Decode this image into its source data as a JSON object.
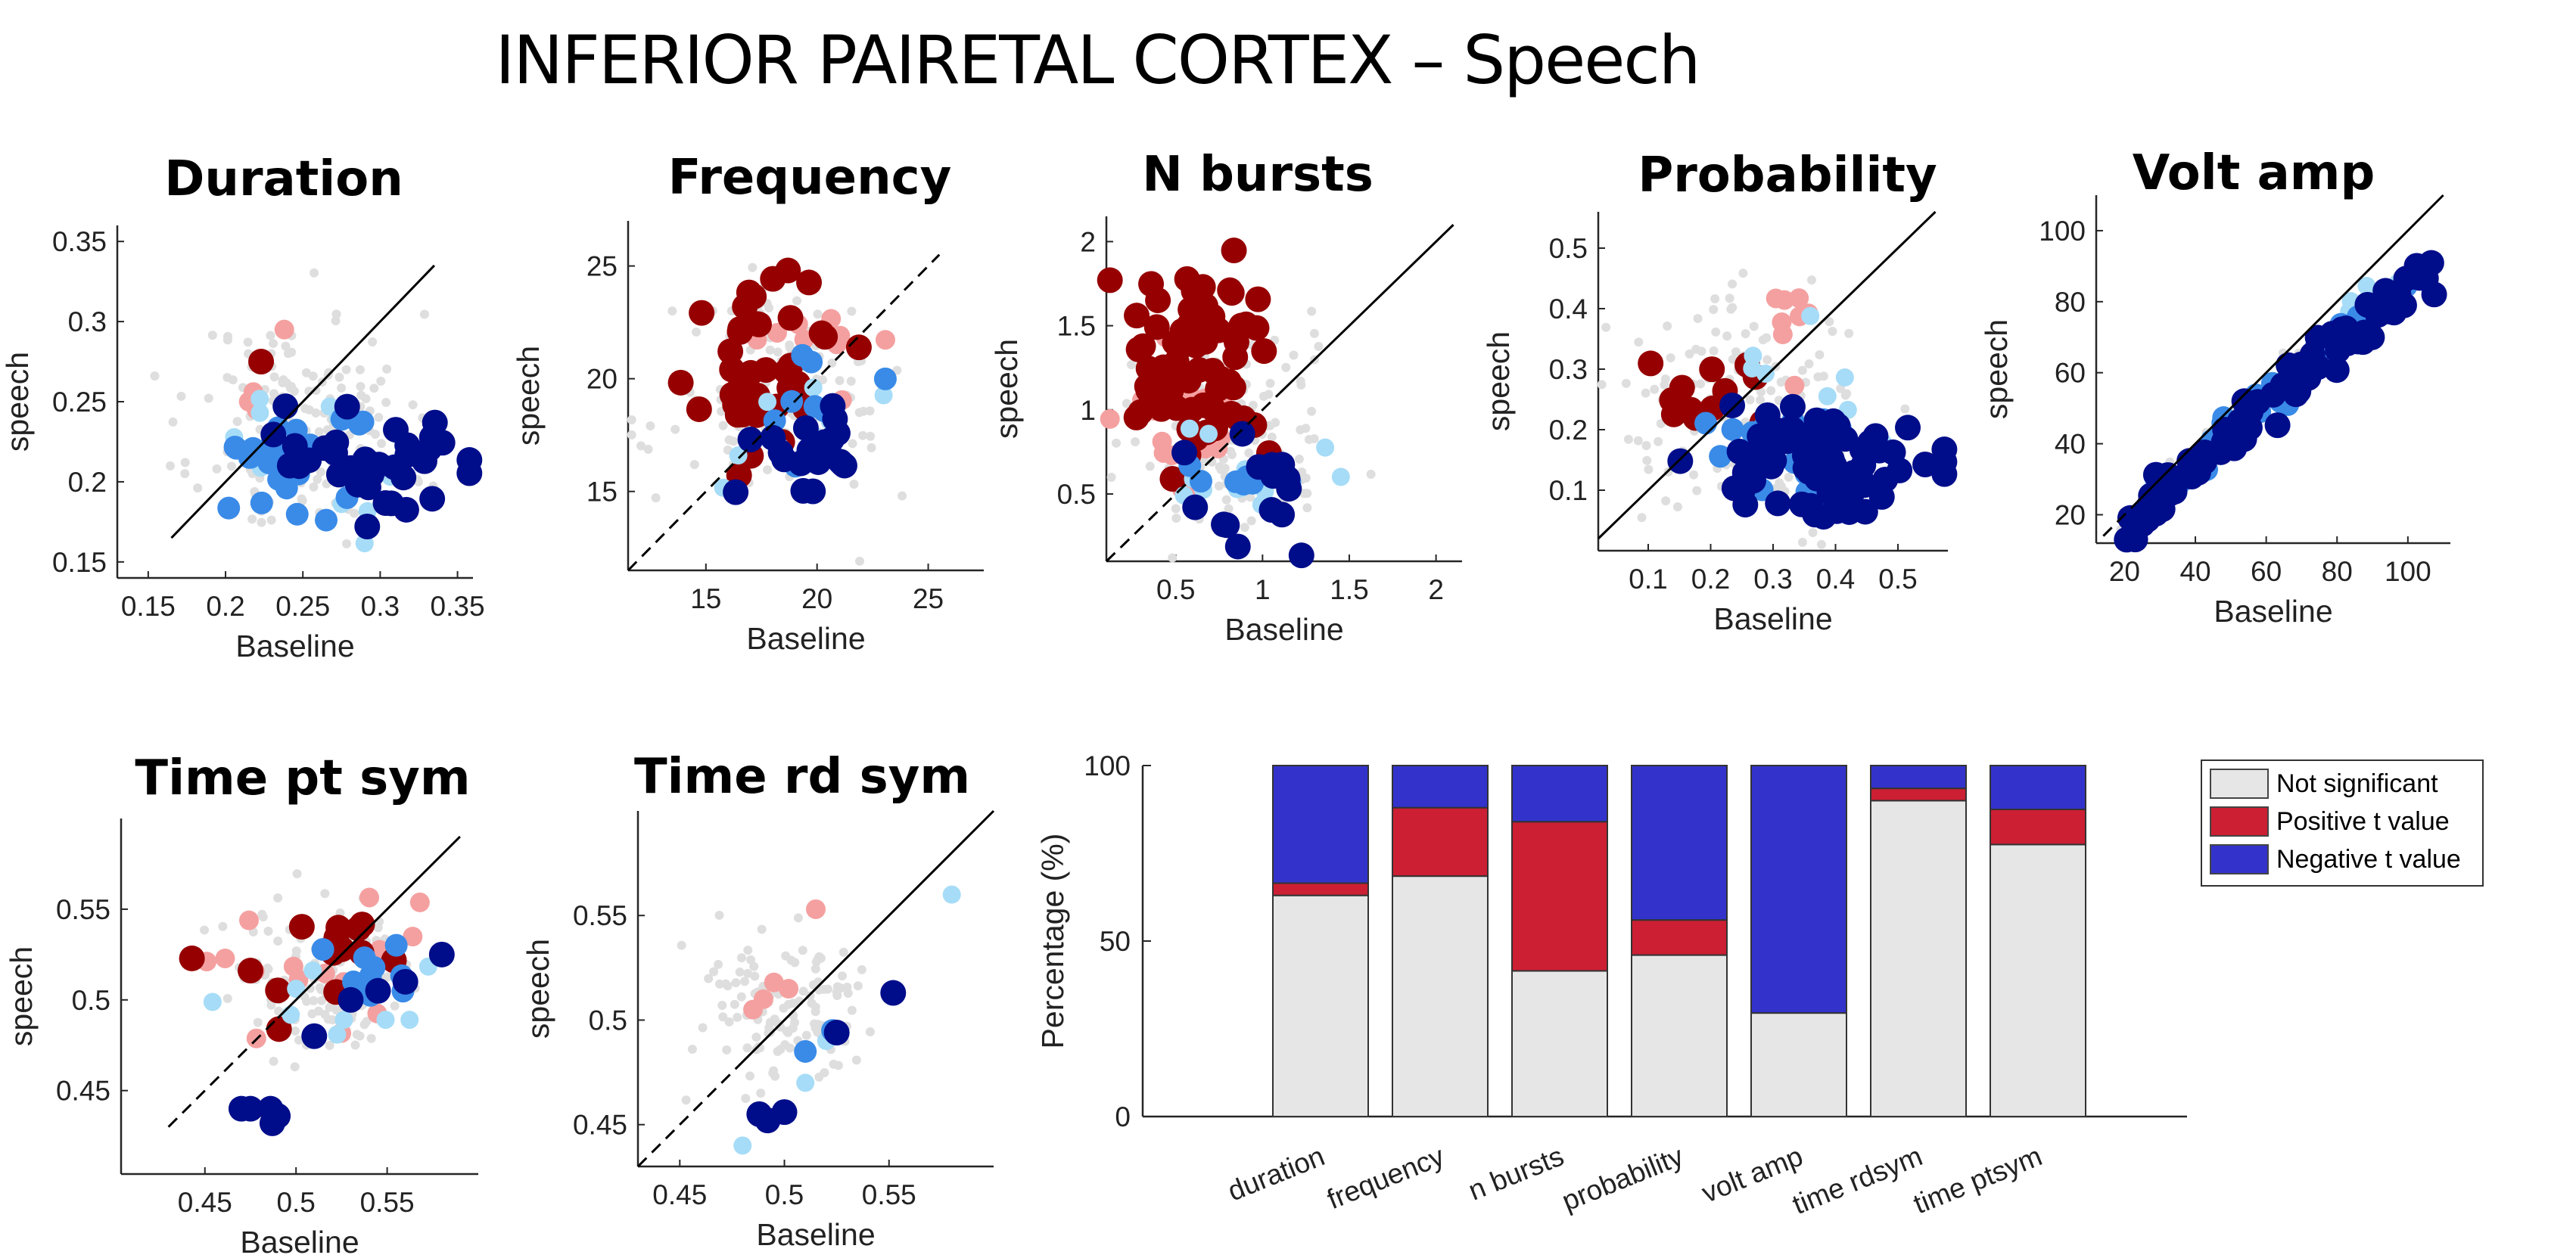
{
  "page_title": "INFERIOR PAIRETAL CORTEX – Speech",
  "colors": {
    "not_sig_dot": "#dedede",
    "pos_strong": "#960000",
    "pos_light": "#f5a0a0",
    "neg_strong": "#000d8a",
    "neg_mid": "#3a8be8",
    "neg_light": "#a6dcf7",
    "bar_not_sig": "#e6e6e6",
    "bar_pos": "#cc1f33",
    "bar_neg": "#3333cc"
  },
  "chart_data": [
    {
      "id": "duration",
      "type": "scatter",
      "title": "Duration",
      "xlabel": "Baseline",
      "ylabel": "speech",
      "xlim": [
        0.13,
        0.36
      ],
      "ylim": [
        0.14,
        0.36
      ],
      "xticks": [
        0.15,
        0.2,
        0.25,
        0.3,
        0.35
      ],
      "yticks": [
        0.15,
        0.2,
        0.25,
        0.3,
        0.35
      ],
      "xtick_labels": [
        "0.15",
        "0.2",
        "0.25",
        "0.3",
        "0.35"
      ],
      "ytick_labels": [
        "0.15",
        "0.2",
        "0.25",
        "0.3",
        "0.35"
      ],
      "diag_style": "solid",
      "diag_range": [
        0.165,
        0.335
      ],
      "clusters": [
        {
          "cat": "ns",
          "n": 170,
          "cx": 0.25,
          "cy": 0.235,
          "sx": 0.034,
          "sy": 0.035,
          "seed": 11
        },
        {
          "cat": "pos_light",
          "points": [
            [
              0.215,
              0.25
            ],
            [
              0.22,
              0.245
            ],
            [
              0.225,
              0.275
            ],
            [
              0.238,
              0.295
            ],
            [
              0.218,
              0.256
            ]
          ]
        },
        {
          "cat": "pos_strong",
          "points": [
            [
              0.223,
              0.275
            ]
          ]
        },
        {
          "cat": "neg_light",
          "n": 10,
          "cx": 0.27,
          "cy": 0.225,
          "sx": 0.04,
          "sy": 0.03,
          "seed": 3
        },
        {
          "cat": "neg_mid",
          "n": 30,
          "cx": 0.25,
          "cy": 0.215,
          "sx": 0.022,
          "sy": 0.017,
          "seed": 5
        },
        {
          "cat": "neg_strong",
          "n": 35,
          "cx": 0.29,
          "cy": 0.21,
          "sx": 0.03,
          "sy": 0.02,
          "seed": 7
        }
      ]
    },
    {
      "id": "frequency",
      "type": "scatter",
      "title": "Frequency",
      "xlabel": "Baseline",
      "ylabel": "speech",
      "xlim": [
        11.5,
        27.5
      ],
      "ylim": [
        11.5,
        27
      ],
      "xticks": [
        15,
        20,
        25
      ],
      "yticks": [
        15,
        20,
        25
      ],
      "xtick_labels": [
        "15",
        "20",
        "25"
      ],
      "ytick_labels": [
        "15",
        "20",
        "25"
      ],
      "diag_style": "dashed",
      "diag_range": [
        11.5,
        25.5
      ],
      "clusters": [
        {
          "cat": "ns",
          "n": 150,
          "cx": 18.5,
          "cy": 19,
          "sx": 2.4,
          "sy": 2.3,
          "seed": 21
        },
        {
          "cat": "pos_light",
          "n": 12,
          "cx": 19.5,
          "cy": 21.5,
          "sx": 1.6,
          "sy": 1.3,
          "seed": 22
        },
        {
          "cat": "pos_strong",
          "n": 40,
          "cx": 18.2,
          "cy": 20.3,
          "sx": 1.6,
          "sy": 1.8,
          "seed": 23
        },
        {
          "cat": "neg_light",
          "n": 8,
          "cx": 19,
          "cy": 17.5,
          "sx": 2,
          "sy": 1.5,
          "seed": 24
        },
        {
          "cat": "neg_mid",
          "n": 8,
          "cx": 20.5,
          "cy": 18.5,
          "sx": 1.5,
          "sy": 1.2,
          "seed": 25
        },
        {
          "cat": "neg_strong",
          "n": 20,
          "cx": 20,
          "cy": 17.6,
          "sx": 1.5,
          "sy": 1.3,
          "seed": 26
        }
      ]
    },
    {
      "id": "nbursts",
      "type": "scatter",
      "title": "N bursts",
      "xlabel": "Baseline",
      "ylabel": "speech",
      "xlim": [
        0.1,
        2.15
      ],
      "ylim": [
        0.1,
        2.15
      ],
      "xticks": [
        0.5,
        1,
        1.5,
        2
      ],
      "yticks": [
        0.5,
        1,
        1.5,
        2
      ],
      "xtick_labels": [
        "0.5",
        "1",
        "1.5",
        "2"
      ],
      "ytick_labels": [
        "0.5",
        "1",
        "1.5",
        "2"
      ],
      "diag_style": "split",
      "diag_range": [
        0.1,
        2.1
      ],
      "diag_split": 1.1,
      "clusters": [
        {
          "cat": "ns",
          "n": 150,
          "cx": 0.8,
          "cy": 0.85,
          "sx": 0.3,
          "sy": 0.3,
          "seed": 31
        },
        {
          "cat": "pos_light",
          "n": 25,
          "cx": 0.6,
          "cy": 0.95,
          "sx": 0.2,
          "sy": 0.25,
          "seed": 32
        },
        {
          "cat": "pos_strong",
          "n": 70,
          "cx": 0.62,
          "cy": 1.22,
          "sx": 0.18,
          "sy": 0.28,
          "seed": 33
        },
        {
          "cat": "neg_light",
          "n": 12,
          "cx": 0.85,
          "cy": 0.6,
          "sx": 0.25,
          "sy": 0.15,
          "seed": 34
        },
        {
          "cat": "neg_mid",
          "n": 8,
          "cx": 0.9,
          "cy": 0.6,
          "sx": 0.2,
          "sy": 0.1,
          "seed": 35
        },
        {
          "cat": "neg_strong",
          "n": 15,
          "cx": 0.95,
          "cy": 0.5,
          "sx": 0.25,
          "sy": 0.2,
          "seed": 36
        }
      ]
    },
    {
      "id": "probability",
      "type": "scatter",
      "title": "Probability",
      "xlabel": "Baseline",
      "ylabel": "speech",
      "xlim": [
        0.02,
        0.58
      ],
      "ylim": [
        0.0,
        0.56
      ],
      "xticks": [
        0.1,
        0.2,
        0.3,
        0.4,
        0.5
      ],
      "yticks": [
        0.1,
        0.2,
        0.3,
        0.4,
        0.5
      ],
      "xtick_labels": [
        "0.1",
        "0.2",
        "0.3",
        "0.4",
        "0.5"
      ],
      "ytick_labels": [
        "0.1",
        "0.2",
        "0.3",
        "0.4",
        "0.5"
      ],
      "diag_style": "solid",
      "diag_range": [
        0.02,
        0.56
      ],
      "clusters": [
        {
          "cat": "ns",
          "n": 150,
          "cx": 0.25,
          "cy": 0.24,
          "sx": 0.1,
          "sy": 0.09,
          "seed": 41
        },
        {
          "cat": "pos_light",
          "n": 8,
          "cx": 0.3,
          "cy": 0.38,
          "sx": 0.03,
          "sy": 0.04,
          "seed": 42
        },
        {
          "cat": "pos_strong",
          "n": 12,
          "cx": 0.18,
          "cy": 0.27,
          "sx": 0.06,
          "sy": 0.06,
          "seed": 43
        },
        {
          "cat": "neg_light",
          "n": 12,
          "cx": 0.35,
          "cy": 0.22,
          "sx": 0.1,
          "sy": 0.07,
          "seed": 44
        },
        {
          "cat": "neg_mid",
          "n": 15,
          "cx": 0.3,
          "cy": 0.18,
          "sx": 0.08,
          "sy": 0.05,
          "seed": 45
        },
        {
          "cat": "neg_strong",
          "n": 80,
          "cx": 0.38,
          "cy": 0.15,
          "sx": 0.09,
          "sy": 0.045,
          "seed": 46
        }
      ]
    },
    {
      "id": "voltamp",
      "type": "scatter",
      "title": "Volt amp",
      "xlabel": "Baseline",
      "ylabel": "speech",
      "xlim": [
        12,
        112
      ],
      "ylim": [
        12,
        110
      ],
      "xticks": [
        20,
        40,
        60,
        80,
        100
      ],
      "yticks": [
        20,
        40,
        60,
        80,
        100
      ],
      "xtick_labels": [
        "20",
        "40",
        "60",
        "80",
        "100"
      ],
      "ytick_labels": [
        "20",
        "40",
        "60",
        "80",
        "100"
      ],
      "diag_style": "split",
      "diag_range": [
        14,
        110
      ],
      "diag_split": 22,
      "clusters": [
        {
          "cat": "ns",
          "n": 40,
          "line": true,
          "x0": 18,
          "x1": 105,
          "slope": 0.86,
          "icept": 1,
          "jitter": 3,
          "seed": 51
        },
        {
          "cat": "neg_light",
          "n": 10,
          "line": true,
          "x0": 18,
          "x1": 105,
          "slope": 0.9,
          "icept": 0,
          "jitter": 3,
          "seed": 52
        },
        {
          "cat": "neg_mid",
          "n": 30,
          "line": true,
          "x0": 30,
          "x1": 100,
          "slope": 0.88,
          "icept": 0,
          "jitter": 3,
          "seed": 53
        },
        {
          "cat": "neg_strong",
          "n": 90,
          "line": true,
          "x0": 20,
          "x1": 108,
          "slope": 0.84,
          "icept": 0,
          "jitter": 3.5,
          "seed": 54
        }
      ]
    },
    {
      "id": "timeptsym",
      "type": "scatter",
      "title": "Time pt sym",
      "xlabel": "Baseline",
      "ylabel": "speech",
      "xlim": [
        0.404,
        0.6
      ],
      "ylim": [
        0.404,
        0.6
      ],
      "xticks": [
        0.45,
        0.5,
        0.55
      ],
      "yticks": [
        0.45,
        0.5,
        0.55
      ],
      "xtick_labels": [
        "0.45",
        "0.5",
        "0.55"
      ],
      "ytick_labels": [
        "0.45",
        "0.5",
        "0.55"
      ],
      "diag_style": "split",
      "diag_range": [
        0.43,
        0.59
      ],
      "diag_split": 0.49,
      "clusters": [
        {
          "cat": "ns",
          "n": 140,
          "cx": 0.515,
          "cy": 0.515,
          "sx": 0.025,
          "sy": 0.022,
          "seed": 61
        },
        {
          "cat": "pos_light",
          "n": 15,
          "cx": 0.5,
          "cy": 0.525,
          "sx": 0.03,
          "sy": 0.02,
          "seed": 62
        },
        {
          "cat": "pos_strong",
          "n": 15,
          "cx": 0.495,
          "cy": 0.52,
          "sx": 0.025,
          "sy": 0.02,
          "seed": 63
        },
        {
          "cat": "neg_light",
          "n": 10,
          "cx": 0.53,
          "cy": 0.5,
          "sx": 0.03,
          "sy": 0.02,
          "seed": 64
        },
        {
          "cat": "neg_mid",
          "n": 10,
          "cx": 0.54,
          "cy": 0.51,
          "sx": 0.02,
          "sy": 0.015,
          "seed": 65
        },
        {
          "cat": "neg_strong",
          "points": [
            [
              0.47,
              0.44
            ],
            [
              0.475,
              0.44
            ],
            [
              0.487,
              0.432
            ],
            [
              0.49,
              0.436
            ],
            [
              0.486,
              0.44
            ],
            [
              0.51,
              0.48
            ],
            [
              0.53,
              0.5
            ],
            [
              0.545,
              0.505
            ],
            [
              0.58,
              0.525
            ],
            [
              0.56,
              0.51
            ]
          ]
        }
      ]
    },
    {
      "id": "timerdsym",
      "type": "scatter",
      "title": "Time rd sym",
      "xlabel": "Baseline",
      "ylabel": "speech",
      "xlim": [
        0.43,
        0.6
      ],
      "ylim": [
        0.43,
        0.6
      ],
      "xticks": [
        0.45,
        0.5,
        0.55
      ],
      "yticks": [
        0.45,
        0.5,
        0.55
      ],
      "xtick_labels": [
        "0.45",
        "0.5",
        "0.55"
      ],
      "ytick_labels": [
        "0.45",
        "0.5",
        "0.55"
      ],
      "diag_style": "split",
      "diag_range": [
        0.43,
        0.6
      ],
      "diag_split": 0.478,
      "clusters": [
        {
          "cat": "ns",
          "n": 130,
          "cx": 0.5,
          "cy": 0.503,
          "sx": 0.022,
          "sy": 0.02,
          "seed": 71
        },
        {
          "cat": "pos_light",
          "points": [
            [
              0.49,
              0.51
            ],
            [
              0.502,
              0.515
            ],
            [
              0.515,
              0.553
            ],
            [
              0.485,
              0.505
            ],
            [
              0.495,
              0.518
            ]
          ]
        },
        {
          "cat": "neg_light",
          "points": [
            [
              0.48,
              0.44
            ],
            [
              0.52,
              0.49
            ],
            [
              0.58,
              0.56
            ],
            [
              0.51,
              0.47
            ]
          ]
        },
        {
          "cat": "neg_mid",
          "points": [
            [
              0.51,
              0.485
            ],
            [
              0.523,
              0.495
            ]
          ]
        },
        {
          "cat": "neg_strong",
          "points": [
            [
              0.488,
              0.455
            ],
            [
              0.492,
              0.452
            ],
            [
              0.5,
              0.456
            ],
            [
              0.525,
              0.494
            ],
            [
              0.552,
              0.513
            ]
          ]
        }
      ]
    },
    {
      "id": "summary",
      "type": "bar",
      "stacked": true,
      "ylabel": "Percentage (%)",
      "ylim": [
        0,
        100
      ],
      "yticks": [
        0,
        50,
        100
      ],
      "ytick_labels": [
        "0",
        "50",
        "100"
      ],
      "categories": [
        "duration",
        "frequency",
        "n bursts",
        "probability",
        "volt amp",
        "time rdsym",
        "time ptsym"
      ],
      "series": [
        {
          "name": "Not significant",
          "values": [
            63,
            68.5,
            41.5,
            46,
            29.5,
            90,
            77.5
          ]
        },
        {
          "name": "Positive t value",
          "values": [
            3.5,
            19.5,
            42.5,
            10,
            0,
            3.5,
            10
          ]
        },
        {
          "name": "Negative t value",
          "values": [
            33.5,
            12,
            16,
            44,
            70.5,
            6.5,
            12.5
          ]
        }
      ],
      "legend": "top-right"
    }
  ]
}
